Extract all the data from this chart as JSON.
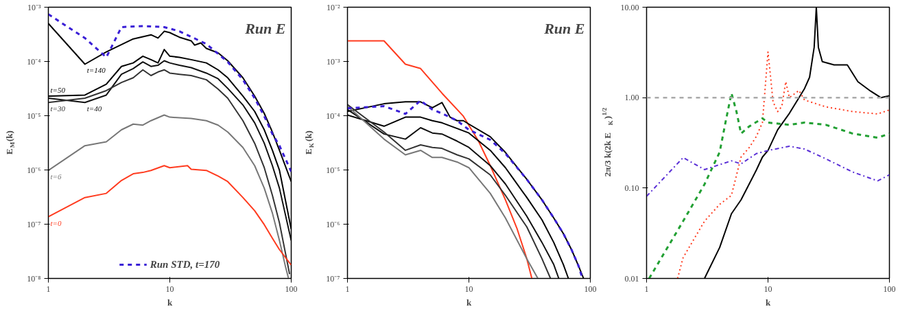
{
  "chart_data": [
    {
      "type": "line",
      "xlabel": "k",
      "ylabel": "E$_{M}$(k)",
      "log": "xy",
      "xlim": [
        1,
        100
      ],
      "ylim": [
        1e-08,
        0.001
      ],
      "xticks": [
        1,
        10,
        100
      ],
      "yticks": [
        {
          "value": 1e-08,
          "label": "10⁻⁸"
        },
        {
          "value": 1e-07,
          "label": "10⁻⁷"
        },
        {
          "value": 1e-06,
          "label": "10⁻⁶"
        },
        {
          "value": 1e-05,
          "label": "10⁻⁵"
        },
        {
          "value": 0.0001,
          "label": "10⁻⁴"
        },
        {
          "value": 0.001,
          "label": "10⁻³"
        }
      ],
      "legend": "bottom",
      "grid": false,
      "annotations": [
        "Run E"
      ],
      "series": [
        {
          "name": "t=140",
          "color": "#000000",
          "line_style": "solid",
          "x": [
            1,
            2,
            3,
            5,
            7,
            8,
            9,
            10,
            12,
            15,
            16,
            18,
            20,
            25,
            30,
            40,
            50,
            60,
            70,
            80,
            100
          ],
          "values": [
            0.0005,
            8.9e-05,
            0.00015,
            0.00026,
            0.00031,
            0.00027,
            0.00036,
            0.00034,
            0.00028,
            0.00024,
            0.0002,
            0.00022,
            0.000174,
            0.000144,
            0.000103,
            5e-05,
            2.3e-05,
            1.1e-05,
            5e-06,
            2.3e-06,
            6.1e-07
          ]
        },
        {
          "name": "t=50",
          "color": "#000000",
          "line_style": "solid",
          "x": [
            1,
            2,
            3,
            4,
            5,
            6,
            7,
            8,
            9,
            10,
            12,
            15,
            20,
            25,
            30,
            40,
            50,
            60,
            70,
            80,
            100
          ],
          "values": [
            2.3e-05,
            2.4e-05,
            3.8e-05,
            8.1e-05,
            9.4e-05,
            0.000125,
            0.000108,
            9.4e-05,
            0.000166,
            0.000125,
            0.000119,
            0.000108,
            9.4e-05,
            7e-05,
            5e-05,
            2.3e-05,
            1.2e-05,
            5.5e-06,
            2.3e-06,
            9.9e-07,
            8.1e-08
          ]
        },
        {
          "name": "t=40",
          "color": "#111111",
          "line_style": "solid",
          "x": [
            1,
            2,
            3,
            4,
            5,
            6,
            7,
            8,
            9,
            10,
            12,
            15,
            20,
            25,
            30,
            40,
            50,
            60,
            70,
            80,
            100
          ],
          "values": [
            2.1e-05,
            1.75e-05,
            2.4e-05,
            5.8e-05,
            7.4e-05,
            9.8e-05,
            8.1e-05,
            8.5e-05,
            0.000103,
            9.4e-05,
            8.5e-05,
            7.7e-05,
            6.1e-05,
            4.8e-05,
            3.2e-05,
            1.58e-05,
            7.4e-06,
            3.1e-06,
            1.2e-06,
            4.6e-07,
            5e-08
          ]
        },
        {
          "name": "t=30",
          "color": "#333333",
          "line_style": "solid",
          "x": [
            1,
            2,
            3,
            4,
            5,
            6,
            7,
            8,
            9,
            10,
            12,
            15,
            20,
            25,
            30,
            40,
            50,
            60,
            70,
            80,
            90,
            97
          ],
          "values": [
            1.75e-05,
            2.1e-05,
            2.9e-05,
            4.1e-05,
            5e-05,
            7e-05,
            5.5e-05,
            6.4e-05,
            7e-05,
            6.1e-05,
            5.8e-05,
            5.5e-05,
            4.6e-05,
            3.1e-05,
            2.1e-05,
            8.1e-06,
            3.1e-06,
            1.1e-06,
            3.4e-07,
            1.06e-07,
            2.8e-08,
            1.2e-08
          ]
        },
        {
          "name": "t=6",
          "color": "#777777",
          "line_style": "solid",
          "x": [
            1,
            2,
            3,
            4,
            5,
            6,
            7,
            9,
            10,
            15,
            20,
            25,
            30,
            40,
            50,
            60,
            70,
            80,
            90,
            95
          ],
          "values": [
            9.8e-07,
            2.8e-06,
            3.3e-06,
            5.5e-06,
            7e-06,
            6.7e-06,
            8.1e-06,
            1.03e-05,
            9.4e-06,
            8.9e-06,
            8.1e-06,
            6.7e-06,
            5e-06,
            2.6e-06,
            1.2e-06,
            4.6e-07,
            1.6e-07,
            5e-08,
            1.6e-08,
            1e-08
          ]
        },
        {
          "name": "t=0",
          "color": "#ff3b1f",
          "line_style": "solid",
          "x": [
            1,
            2,
            3,
            4,
            5,
            6,
            7,
            9,
            10,
            14,
            15,
            20,
            25,
            30,
            40,
            50,
            60,
            70,
            80,
            100
          ],
          "values": [
            1.37e-07,
            3.1e-07,
            3.7e-07,
            6.4e-07,
            8.5e-07,
            9e-07,
            9.8e-07,
            1.2e-06,
            1.1e-06,
            1.2e-06,
            1.03e-06,
            9.8e-07,
            7.7e-07,
            6.1e-07,
            3.1e-07,
            1.77e-07,
            9.8e-08,
            5.5e-08,
            3.4e-08,
            1.77e-08
          ]
        },
        {
          "name": "Run STD, t=170",
          "color": "#3a1fd6",
          "line_style": "dashed",
          "x": [
            1,
            2,
            3,
            4,
            6,
            9,
            12,
            20,
            30,
            40,
            50,
            60,
            70,
            80,
            100
          ],
          "values": [
            0.00074,
            0.00027,
            0.000119,
            0.00043,
            0.00045,
            0.00043,
            0.00036,
            0.00021,
            9.8e-05,
            4.6e-05,
            2.1e-05,
            9.8e-06,
            4.6e-06,
            2.8e-06,
            9.3e-07
          ]
        }
      ]
    },
    {
      "type": "line",
      "xlabel": "k",
      "ylabel": "E$_{K}$(k)",
      "log": "xy",
      "xlim": [
        1,
        100
      ],
      "ylim": [
        1e-07,
        0.01
      ],
      "xticks": [
        1,
        10,
        100
      ],
      "yticks": [
        {
          "value": 1e-07,
          "label": "10⁻⁷"
        },
        {
          "value": 1e-06,
          "label": "10⁻⁶"
        },
        {
          "value": 1e-05,
          "label": "10⁻⁵"
        },
        {
          "value": 0.0001,
          "label": "10⁻⁴"
        },
        {
          "value": 0.001,
          "label": "10⁻³"
        },
        {
          "value": 0.01,
          "label": "10⁻²"
        }
      ],
      "grid": false,
      "annotations": [
        "Run E"
      ],
      "series": [
        {
          "color": "#ff3b1f",
          "line_style": "solid",
          "x": [
            1,
            2,
            3,
            4,
            6,
            9,
            12,
            15,
            20,
            25,
            30,
            33
          ],
          "values": [
            0.0024,
            0.0024,
            0.00089,
            0.00074,
            0.00026,
            9.8e-05,
            3.4e-05,
            1.2e-05,
            2.8e-06,
            8.1e-07,
            2.3e-07,
            1e-07
          ]
        },
        {
          "color": "#000000",
          "line_style": "solid",
          "x": [
            1,
            2,
            3,
            4,
            5,
            6,
            7,
            8,
            9,
            10,
            15,
            20,
            30,
            40,
            50,
            60,
            70,
            80,
            88
          ],
          "values": [
            0.00012,
            0.000166,
            0.00018,
            0.00018,
            0.00014,
            0.000175,
            9.4e-05,
            8.1e-05,
            8.1e-05,
            7e-05,
            4.1e-05,
            2.1e-05,
            6.7e-06,
            2.8e-06,
            1.3e-06,
            6.7e-07,
            3.4e-07,
            1.7e-07,
            1e-07
          ]
        },
        {
          "color": "#000000",
          "line_style": "solid",
          "x": [
            1,
            2,
            3,
            4,
            5,
            6,
            8,
            10,
            15,
            20,
            30,
            40,
            50,
            60,
            66
          ],
          "values": [
            0.000103,
            6.4e-05,
            9.4e-05,
            9.4e-05,
            8.1e-05,
            7.4e-05,
            5.8e-05,
            4.8e-05,
            2.3e-05,
            1.1e-05,
            3.1e-06,
            1.2e-06,
            4.6e-07,
            1.8e-07,
            1e-07
          ]
        },
        {
          "color": "#111111",
          "line_style": "solid",
          "x": [
            1,
            2,
            3,
            4,
            5,
            6,
            8,
            10,
            15,
            20,
            30,
            40,
            50,
            55
          ],
          "values": [
            0.00013,
            4.6e-05,
            3.7e-05,
            6e-05,
            4.8e-05,
            4.6e-05,
            3.4e-05,
            2.6e-05,
            1.2e-05,
            5.5e-06,
            1.4e-06,
            4.6e-07,
            1.8e-07,
            1e-07
          ]
        },
        {
          "color": "#333333",
          "line_style": "solid",
          "x": [
            1,
            2,
            3,
            4,
            5,
            6,
            8,
            10,
            15,
            20,
            30,
            40,
            47
          ],
          "values": [
            0.00016,
            5e-05,
            2.3e-05,
            2.9e-05,
            2.6e-05,
            2.5e-05,
            1.9e-05,
            1.6e-05,
            8.1e-06,
            3.4e-06,
            8.9e-07,
            2.3e-07,
            1e-07
          ]
        },
        {
          "color": "#777777",
          "line_style": "solid",
          "x": [
            1,
            2,
            3,
            4,
            5,
            6,
            8,
            10,
            15,
            20,
            30,
            37
          ],
          "values": [
            0.00015,
            3.7e-05,
            1.9e-05,
            2.3e-05,
            1.7e-05,
            1.7e-05,
            1.4e-05,
            1.1e-05,
            3.7e-06,
            1.3e-06,
            2.3e-07,
            1e-07
          ]
        },
        {
          "color": "#3a1fd6",
          "line_style": "dashed",
          "x": [
            1,
            2,
            3,
            4,
            5,
            6,
            8,
            10,
            15,
            20,
            30,
            40,
            50,
            60,
            70,
            80,
            86
          ],
          "values": [
            0.000137,
            0.00015,
            0.000108,
            0.00019,
            0.00013,
            0.00011,
            8.1e-05,
            5.5e-05,
            3.6e-05,
            2e-05,
            6.7e-06,
            2.8e-06,
            1.3e-06,
            6.7e-07,
            3.4e-07,
            1.7e-07,
            1e-07
          ]
        }
      ]
    },
    {
      "type": "line",
      "xlabel": "k",
      "ylabel": "2π/3 k(2k E$_{K}$)$^{1/2}$",
      "log": "xy",
      "xlim": [
        1,
        100
      ],
      "ylim": [
        0.01,
        10
      ],
      "xticks": [
        1,
        10,
        100
      ],
      "yticks": [
        {
          "value": 0.01,
          "label": "0.01"
        },
        {
          "value": 0.1,
          "label": "0.10"
        },
        {
          "value": 1,
          "label": "1.00"
        },
        {
          "value": 10,
          "label": "10.00"
        }
      ],
      "grid": false,
      "ref_lines": [
        {
          "axis": "y",
          "value": 1,
          "color": "#aaaaaa",
          "line_style": "dashed"
        }
      ],
      "series": [
        {
          "color": "#000000",
          "line_style": "solid",
          "x": [
            3,
            4,
            5,
            6,
            8,
            9,
            10,
            12,
            15,
            18,
            20,
            22,
            24,
            25,
            26,
            28,
            35,
            45,
            55,
            70,
            85,
            100
          ],
          "values": [
            0.01,
            0.022,
            0.052,
            0.074,
            0.157,
            0.22,
            0.26,
            0.44,
            0.67,
            1.0,
            1.26,
            1.68,
            3.6,
            10,
            3.6,
            2.5,
            2.3,
            2.3,
            1.5,
            1.18,
            1.0,
            1.05
          ]
        },
        {
          "color": "#ff3b1f",
          "line_style": "dotted",
          "x": [
            1.8,
            2,
            3,
            4,
            5,
            6,
            7,
            8,
            9,
            10,
            10.5,
            11,
            12,
            13,
            14,
            15,
            18,
            20,
            30,
            50,
            80,
            100
          ],
          "values": [
            0.01,
            0.017,
            0.043,
            0.066,
            0.083,
            0.22,
            0.28,
            0.37,
            0.53,
            3.2,
            1.7,
            0.9,
            0.7,
            0.8,
            1.5,
            1.0,
            1.2,
            0.94,
            0.79,
            0.7,
            0.66,
            0.73
          ]
        },
        {
          "color": "#22a033",
          "line_style": "dashed",
          "x": [
            1.05,
            2,
            3,
            4,
            4.5,
            5,
            5.5,
            6,
            7,
            9,
            10,
            15,
            20,
            30,
            50,
            80,
            100
          ],
          "values": [
            0.01,
            0.043,
            0.11,
            0.25,
            0.56,
            1.12,
            0.7,
            0.4,
            0.48,
            0.59,
            0.53,
            0.5,
            0.53,
            0.5,
            0.4,
            0.36,
            0.4
          ]
        },
        {
          "color": "#5a2fd6",
          "line_style": "dashdot",
          "x": [
            1,
            2,
            3,
            5,
            6,
            8,
            10,
            15,
            20,
            30,
            50,
            80,
            100
          ],
          "values": [
            0.081,
            0.217,
            0.16,
            0.2,
            0.185,
            0.24,
            0.26,
            0.29,
            0.27,
            0.21,
            0.15,
            0.12,
            0.14
          ]
        }
      ]
    }
  ]
}
